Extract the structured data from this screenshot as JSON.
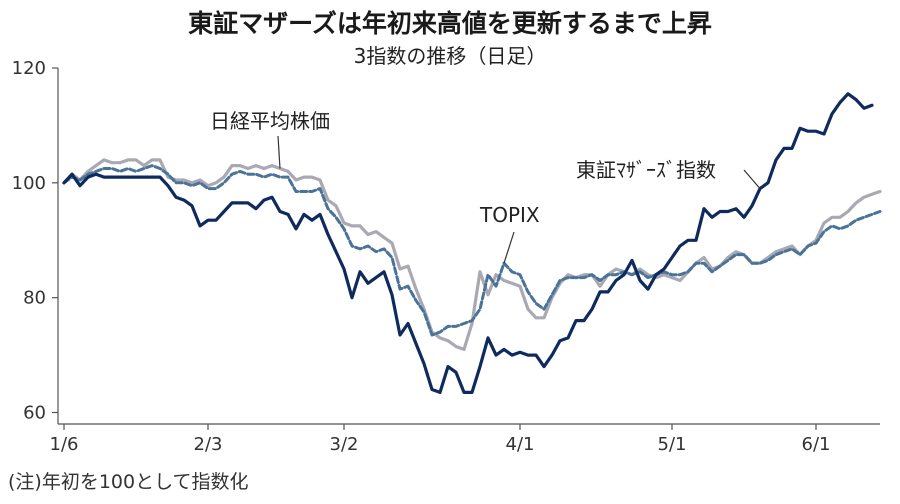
{
  "chart_data": {
    "type": "line",
    "title": "東証マザーズは年初来高値を更新するまで上昇",
    "subtitle": "3指数の推移（日足）",
    "note": "(注)年初を100として指数化",
    "xlabel": "",
    "ylabel": "",
    "ylim": [
      58,
      120
    ],
    "yticks": [
      60,
      80,
      100,
      120
    ],
    "x_tick_labels": [
      {
        "index": 0,
        "label": "1/6"
      },
      {
        "index": 18,
        "label": "2/3"
      },
      {
        "index": 35,
        "label": "3/2"
      },
      {
        "index": 57,
        "label": "4/1"
      },
      {
        "index": 76,
        "label": "5/1"
      },
      {
        "index": 94,
        "label": "6/1"
      }
    ],
    "grid": false,
    "series": [
      {
        "name": "東証ﾏｻﾞｰｽﾞ指数",
        "color": "#0f2a5c",
        "style": "solid",
        "label_at": 87,
        "values": [
          100,
          101.5,
          99.5,
          101,
          101.5,
          101,
          101,
          101,
          101,
          101,
          101,
          101,
          101,
          99.5,
          97.5,
          97,
          96,
          92.5,
          93.5,
          93.5,
          95,
          96.5,
          96.5,
          96.5,
          95.5,
          97,
          97.5,
          95,
          94.5,
          92,
          94.5,
          93.5,
          94.5,
          91,
          88,
          85,
          80,
          84.5,
          82.5,
          83.5,
          84.5,
          80.5,
          73.5,
          75.5,
          72,
          68.5,
          64,
          63.5,
          68,
          67,
          63.5,
          63.5,
          68,
          73,
          70,
          71,
          70,
          70.5,
          70,
          70,
          68,
          70,
          72.5,
          73,
          76,
          76,
          78,
          81,
          81,
          83,
          84,
          86.5,
          83,
          81.5,
          84,
          85,
          87,
          89,
          90,
          90,
          95.5,
          94,
          95,
          95,
          95.5,
          94,
          96,
          99,
          100,
          104,
          106,
          106,
          109.5,
          109,
          109,
          108.5,
          112,
          114,
          115.5,
          114.5,
          113,
          113.5
        ]
      },
      {
        "name": "日経平均株価",
        "color": "#a9a9b3",
        "style": "solid",
        "label_at": 27,
        "values": [
          100,
          101.5,
          100.5,
          102,
          103,
          104,
          103.5,
          103.5,
          104,
          104,
          103,
          104,
          104,
          101,
          100.5,
          100.5,
          100,
          100.5,
          99.5,
          100,
          101,
          103,
          103,
          102.5,
          103,
          102.5,
          103,
          102.5,
          102,
          100.5,
          101,
          101,
          100.5,
          97,
          96,
          93,
          92.5,
          92.5,
          91,
          91.5,
          90.5,
          89.5,
          85,
          85.5,
          81.5,
          78,
          74,
          73,
          72.5,
          71.5,
          71,
          75.5,
          84.5,
          80.5,
          84,
          83,
          82.5,
          82,
          78,
          76.5,
          76.5,
          80,
          82.5,
          84,
          83.5,
          84,
          84,
          82,
          84,
          85,
          84.5,
          84,
          85,
          84,
          83.5,
          84,
          83.5,
          83,
          84.5,
          86,
          87,
          85,
          85.5,
          87,
          88,
          87.5,
          86,
          86,
          87,
          88,
          88.5,
          89,
          87.5,
          89,
          90,
          93,
          94,
          94,
          95,
          96.5,
          97.5,
          98,
          98.5
        ]
      },
      {
        "name": "TOPIX",
        "color": "#4a7398",
        "style": "dashed",
        "label_at": 55,
        "values": [
          100,
          101,
          100.5,
          101.5,
          102,
          102.5,
          102.5,
          102,
          102.5,
          102,
          102.5,
          103,
          102.5,
          101.5,
          100,
          100,
          99.5,
          100,
          99,
          99,
          100,
          101.5,
          102,
          101.5,
          101.5,
          101,
          101.5,
          101,
          101,
          98.5,
          98.5,
          98.5,
          99,
          95.5,
          94,
          92,
          89,
          88.5,
          89,
          88,
          88.5,
          87,
          81.5,
          82,
          79.5,
          77.5,
          73.5,
          74,
          75,
          75,
          75.5,
          76,
          78,
          84,
          82,
          86,
          84.5,
          84,
          81,
          79,
          78,
          80.5,
          83,
          83.5,
          83.5,
          83.5,
          84,
          83,
          84,
          84,
          84.5,
          84,
          84.5,
          83.5,
          84,
          84.5,
          84,
          84,
          84.5,
          86,
          86,
          84.5,
          85.5,
          86.5,
          87.5,
          87.5,
          86,
          86,
          86.5,
          87.5,
          88,
          88.5,
          87.5,
          89,
          89.5,
          91.5,
          92.5,
          92,
          92.5,
          93.5,
          94,
          94.5,
          95
        ]
      }
    ]
  }
}
